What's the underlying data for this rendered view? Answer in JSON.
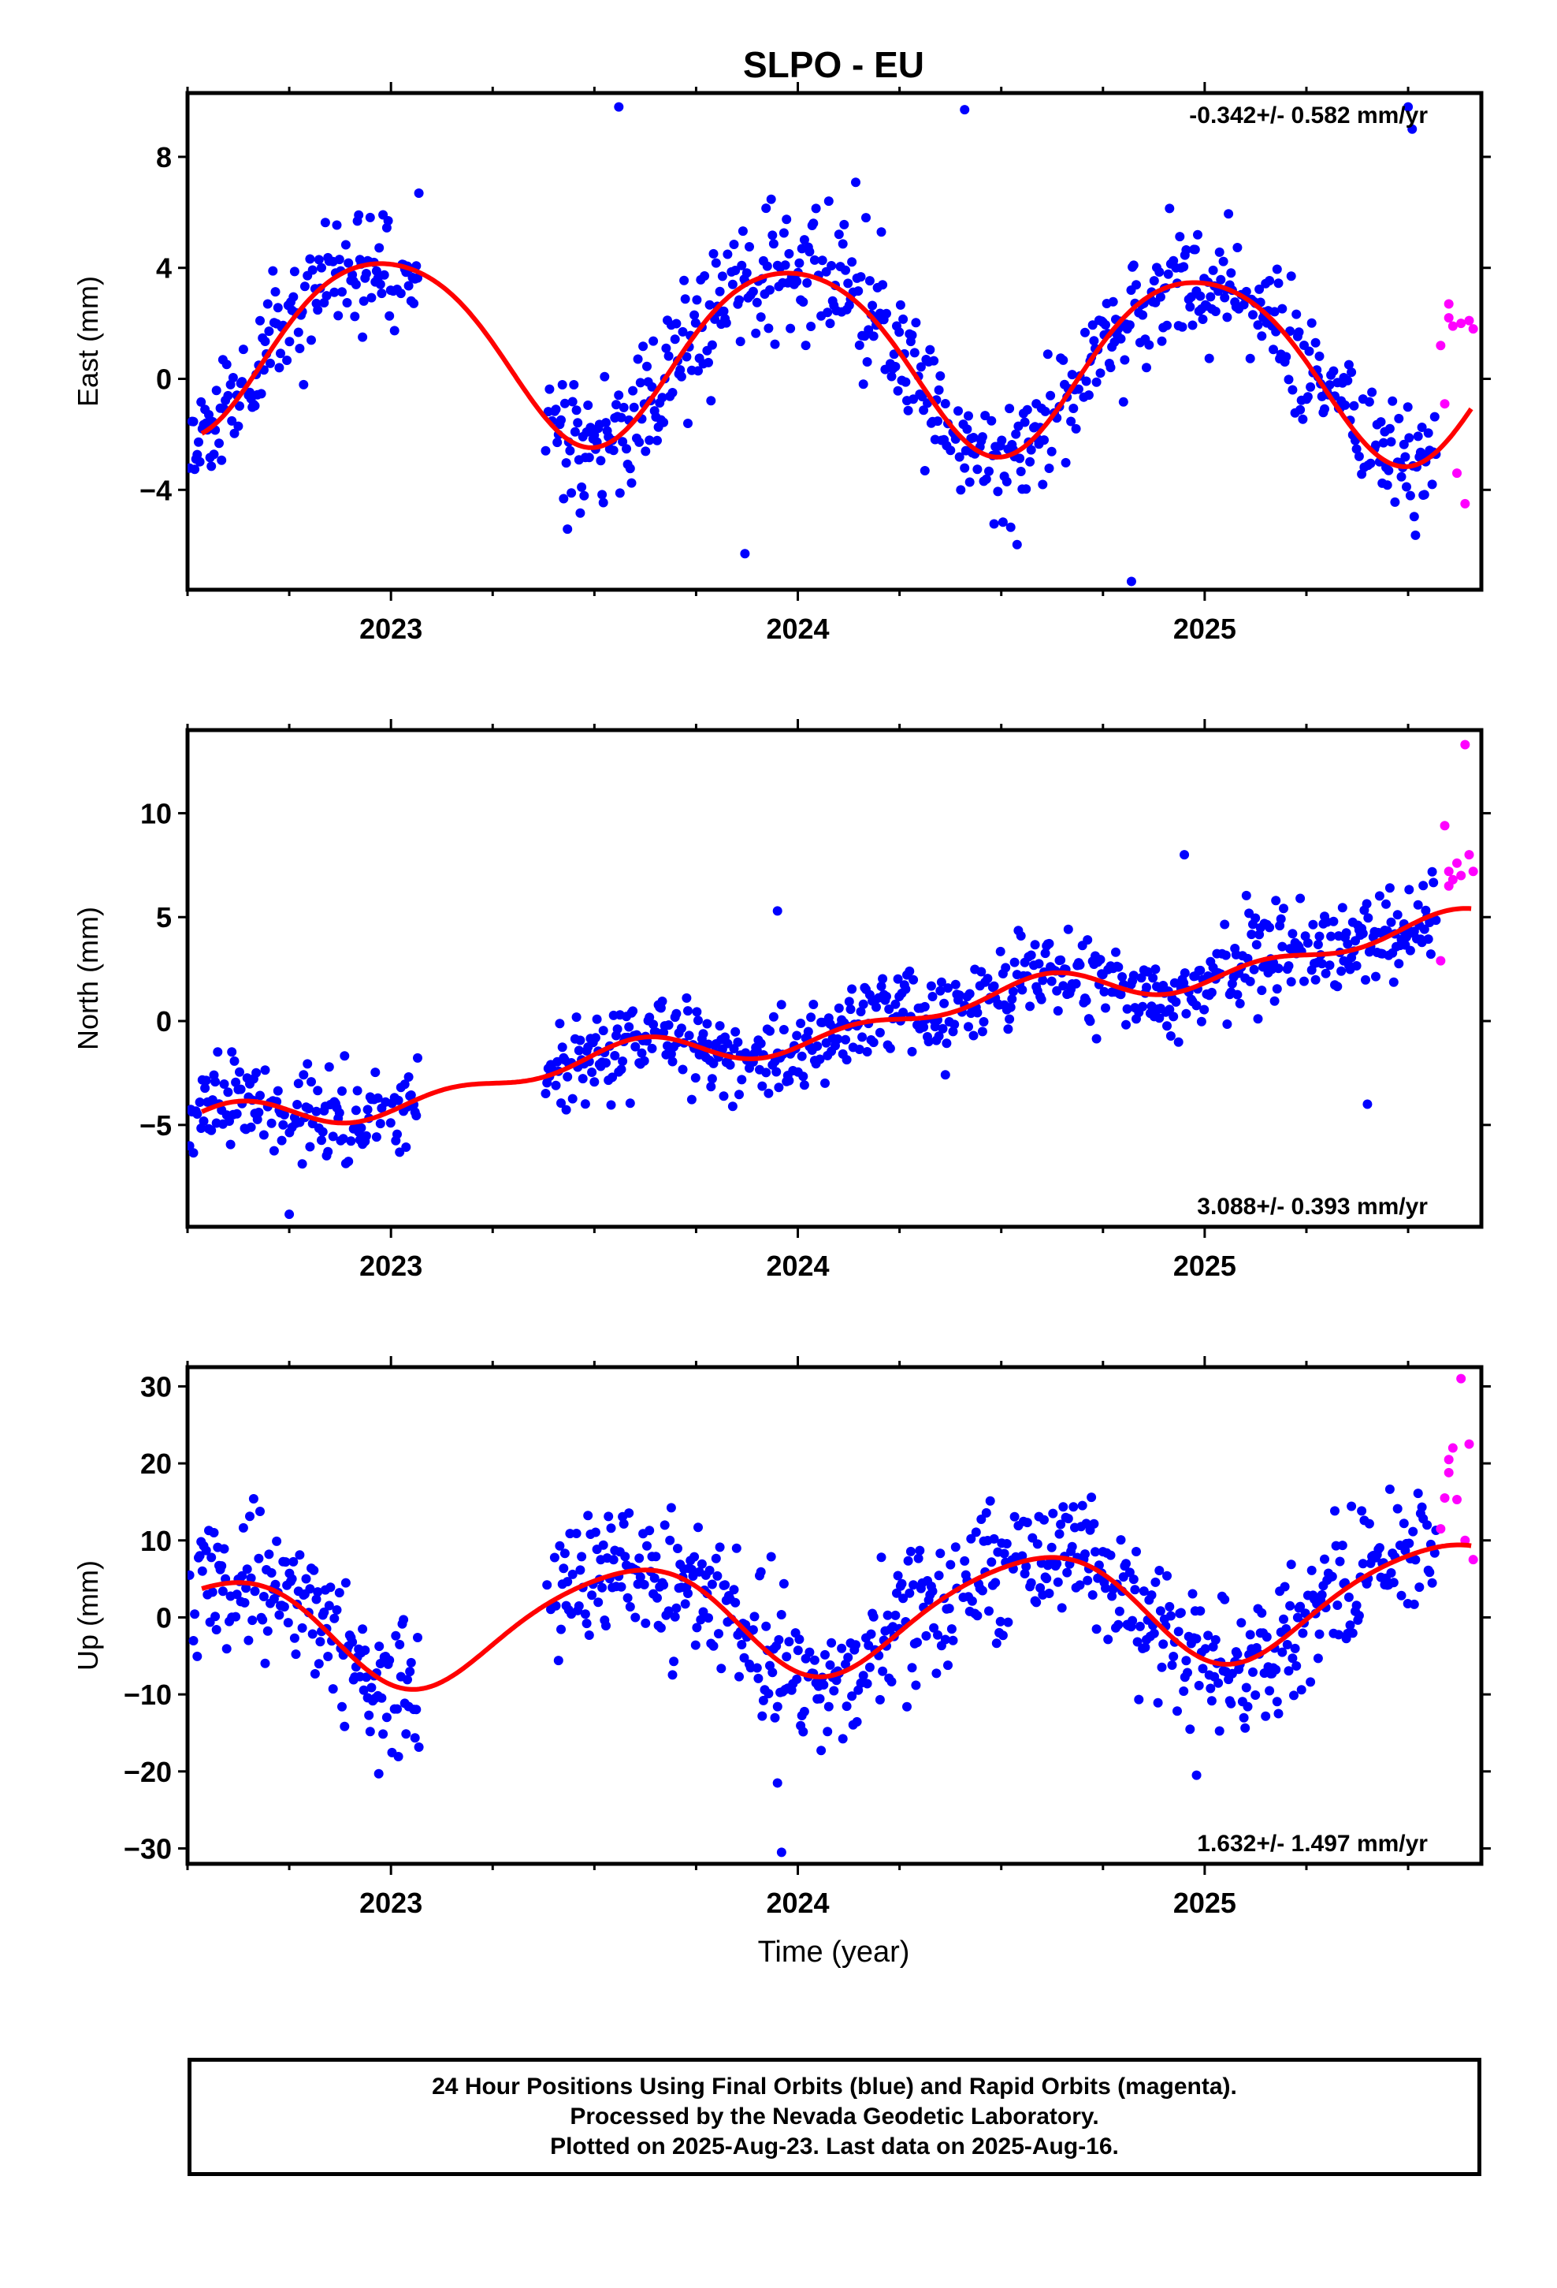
{
  "title": "SLPO - EU",
  "x_axis_label": "Time (year)",
  "footer": {
    "line1": "24 Hour Positions Using Final Orbits (blue) and Rapid Orbits (magenta).",
    "line2": "Processed by the Nevada Geodetic Laboratory.",
    "line3": "Plotted on 2025-Aug-23. Last data on 2025-Aug-16."
  },
  "colors": {
    "final_orbits": "#0000ff",
    "rapid_orbits": "#ff00ff",
    "fit": "#ff0000"
  },
  "chart_data": [
    {
      "type": "scatter",
      "ylabel": "East (mm)",
      "xlim": [
        2022.5,
        2025.68
      ],
      "ylim": [
        -7.6,
        10.3
      ],
      "yticks": [
        -4,
        0,
        4,
        8
      ],
      "xticks": [
        2023,
        2024,
        2025
      ],
      "rate_label": "-0.342+/- 0.582 mm/yr",
      "rate_position": "top-right",
      "grid": false,
      "model": {
        "rate": -0.342,
        "offset": 0.9,
        "t0": 2024.1,
        "terms": [
          {
            "period": 1.0,
            "cos": 2.45,
            "sin": -2.1
          },
          {
            "period": 0.5,
            "cos": -0.1,
            "sin": 0.35
          }
        ],
        "noise_sigma": 1.15,
        "seed": 11
      },
      "gaps": [
        [
          2023.07,
          2023.38
        ]
      ],
      "final_end": 2025.57,
      "series": [
        {
          "name": "Final Orbits",
          "color": "#0000ff",
          "outliers": [
            [
              2023.56,
              9.8
            ],
            [
              2024.41,
              9.7
            ],
            [
              2025.5,
              9.8
            ],
            [
              2025.51,
              9.0
            ],
            [
              2023.87,
              -6.3
            ],
            [
              2024.82,
              -7.3
            ]
          ]
        },
        {
          "name": "Rapid Orbits",
          "color": "#ff00ff",
          "points": [
            [
              2025.58,
              1.2
            ],
            [
              2025.59,
              -0.9
            ],
            [
              2025.6,
              2.7
            ],
            [
              2025.6,
              2.2
            ],
            [
              2025.61,
              1.9
            ],
            [
              2025.62,
              -3.4
            ],
            [
              2025.63,
              2.0
            ],
            [
              2025.64,
              -4.5
            ],
            [
              2025.65,
              2.1
            ],
            [
              2025.66,
              1.8
            ]
          ]
        }
      ]
    },
    {
      "type": "scatter",
      "ylabel": "North (mm)",
      "xlim": [
        2022.5,
        2025.68
      ],
      "ylim": [
        -9.9,
        14.0
      ],
      "yticks": [
        -5,
        0,
        5,
        10
      ],
      "xticks": [
        2023,
        2024,
        2025
      ],
      "rate_label": "3.088+/- 0.393 mm/yr",
      "rate_position": "bottom-right",
      "grid": false,
      "model": {
        "rate": 3.088,
        "offset": -0.3,
        "t0": 2024.1,
        "terms": [
          {
            "period": 1.0,
            "cos": -0.55,
            "sin": 0.25
          },
          {
            "period": 0.5,
            "cos": 0.45,
            "sin": 0.2
          }
        ],
        "noise_sigma": 1.05,
        "seed": 23
      },
      "gaps": [
        [
          2023.07,
          2023.38
        ]
      ],
      "final_end": 2025.57,
      "series": [
        {
          "name": "Final Orbits",
          "color": "#0000ff",
          "outliers": [
            [
              2023.95,
              5.3
            ],
            [
              2024.95,
              8.0
            ],
            [
              2025.4,
              -4.0
            ],
            [
              2022.75,
              -9.3
            ]
          ]
        },
        {
          "name": "Rapid Orbits",
          "color": "#ff00ff",
          "points": [
            [
              2025.58,
              2.9
            ],
            [
              2025.59,
              9.4
            ],
            [
              2025.6,
              6.5
            ],
            [
              2025.6,
              7.2
            ],
            [
              2025.61,
              6.8
            ],
            [
              2025.62,
              7.6
            ],
            [
              2025.63,
              7.0
            ],
            [
              2025.64,
              13.3
            ],
            [
              2025.65,
              8.0
            ],
            [
              2025.66,
              7.2
            ]
          ]
        }
      ]
    },
    {
      "type": "scatter",
      "ylabel": "Up (mm)",
      "xlim": [
        2022.5,
        2025.68
      ],
      "ylim": [
        -32,
        32.5
      ],
      "yticks": [
        -30,
        -20,
        -10,
        0,
        10,
        20,
        30
      ],
      "xticks": [
        2023,
        2024,
        2025
      ],
      "rate_label": "1.632+/- 1.497 mm/yr",
      "rate_position": "bottom-right",
      "grid": false,
      "model": {
        "rate": 1.632,
        "offset": 0.3,
        "t0": 2024.1,
        "terms": [
          {
            "period": 1.0,
            "cos": -7.1,
            "sin": 1.0
          },
          {
            "period": 0.5,
            "cos": -0.5,
            "sin": 0.8
          }
        ],
        "noise_sigma": 4.2,
        "seed": 37
      },
      "gaps": [
        [
          2023.07,
          2023.38
        ]
      ],
      "final_end": 2025.57,
      "series": [
        {
          "name": "Final Orbits",
          "color": "#0000ff",
          "outliers": [
            [
              2023.96,
              -30.5
            ],
            [
              2023.95,
              -21.5
            ],
            [
              2024.98,
              -20.5
            ],
            [
              2022.97,
              -20.3
            ]
          ]
        },
        {
          "name": "Rapid Orbits",
          "color": "#ff00ff",
          "points": [
            [
              2025.58,
              11.5
            ],
            [
              2025.59,
              15.5
            ],
            [
              2025.6,
              18.8
            ],
            [
              2025.6,
              20.5
            ],
            [
              2025.61,
              22.0
            ],
            [
              2025.62,
              15.3
            ],
            [
              2025.63,
              31.0
            ],
            [
              2025.64,
              10.0
            ],
            [
              2025.65,
              22.5
            ],
            [
              2025.66,
              7.5
            ]
          ]
        }
      ]
    }
  ]
}
